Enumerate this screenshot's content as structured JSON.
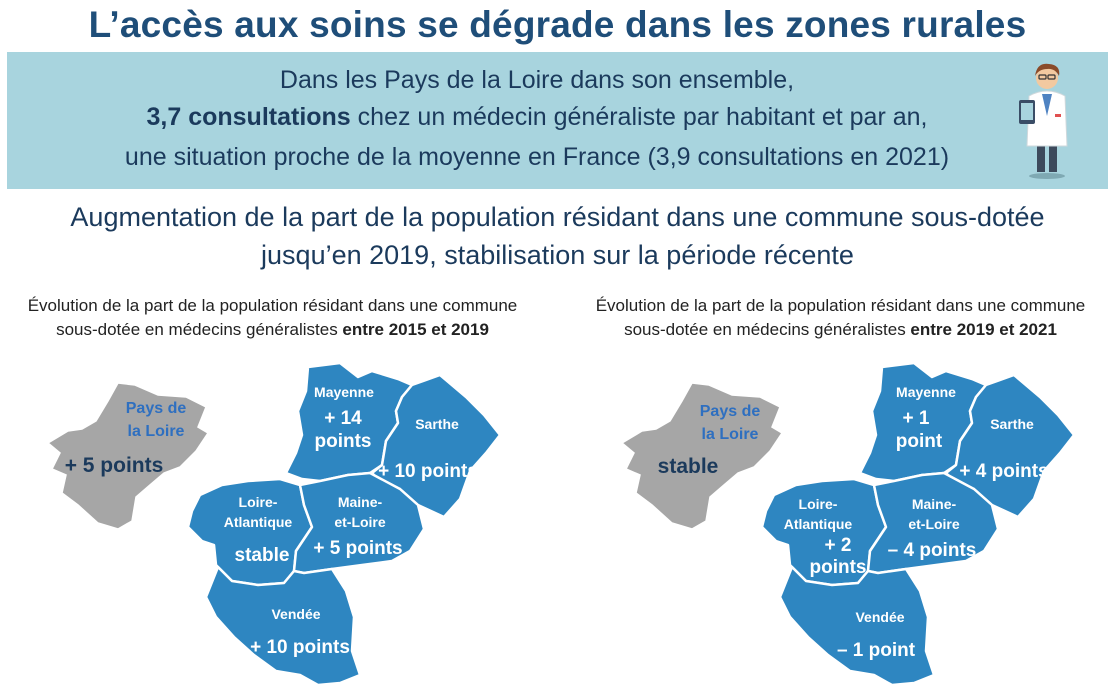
{
  "title": "L’accès aux soins se dégrade dans les zones rurales",
  "banner": {
    "line1": "Dans les Pays de la Loire dans son ensemble,",
    "line2_bold": "3,7 consultations",
    "line2_rest": " chez un médecin généraliste par habitant et par an,",
    "line3": "une situation proche de la moyenne en France (3,9 consultations en 2021)",
    "icon": "doctor-icon"
  },
  "subtitle": {
    "line1": "Augmentation de la part de la population résidant dans une commune sous-dotée",
    "line2": "jusqu’en 2019, stabilisation sur la période récente"
  },
  "maps": [
    {
      "caption_line1": "Évolution de la part de la population résidant dans une commune",
      "caption_line2": "sous-dotée en médecins généralistes ",
      "caption_bold": "entre 2015 et 2019",
      "region": {
        "name_line1": "Pays de",
        "name_line2": "la Loire",
        "value": "+ 5 points"
      },
      "departments": {
        "mayenne": {
          "name": "Mayenne",
          "value_line1": "+ 14",
          "value_line2": "points"
        },
        "sarthe": {
          "name": "Sarthe",
          "value": "+ 10 points"
        },
        "loire_atlantique": {
          "name_line1": "Loire-",
          "name_line2": "Atlantique",
          "value_line1": "stable",
          "value_line2": ""
        },
        "maine_et_loire": {
          "name_line1": "Maine-",
          "name_line2": "et-Loire",
          "value": "+ 5 points"
        },
        "vendee": {
          "name": "Vendée",
          "value": "+ 10 points"
        }
      }
    },
    {
      "caption_line1": "Évolution de la part de la population résidant dans une commune",
      "caption_line2": "sous-dotée en médecins généralistes ",
      "caption_bold": "entre 2019 et 2021",
      "region": {
        "name_line1": "Pays de",
        "name_line2": "la Loire",
        "value": "stable"
      },
      "departments": {
        "mayenne": {
          "name": "Mayenne",
          "value_line1": "+ 1",
          "value_line2": "point"
        },
        "sarthe": {
          "name": "Sarthe",
          "value": "+ 4 points"
        },
        "loire_atlantique": {
          "name_line1": "Loire-",
          "name_line2": "Atlantique",
          "value_line1": "+ 2",
          "value_line2": "points"
        },
        "maine_et_loire": {
          "name_line1": "Maine-",
          "name_line2": "et-Loire",
          "value": "– 4 points"
        },
        "vendee": {
          "name": "Vendée",
          "value": "– 1 point"
        }
      }
    }
  ],
  "colors": {
    "department_fill": "#2e86c1",
    "region_fill": "#a6a6a6",
    "banner": "#a8d4de",
    "title": "#1f4e79"
  }
}
